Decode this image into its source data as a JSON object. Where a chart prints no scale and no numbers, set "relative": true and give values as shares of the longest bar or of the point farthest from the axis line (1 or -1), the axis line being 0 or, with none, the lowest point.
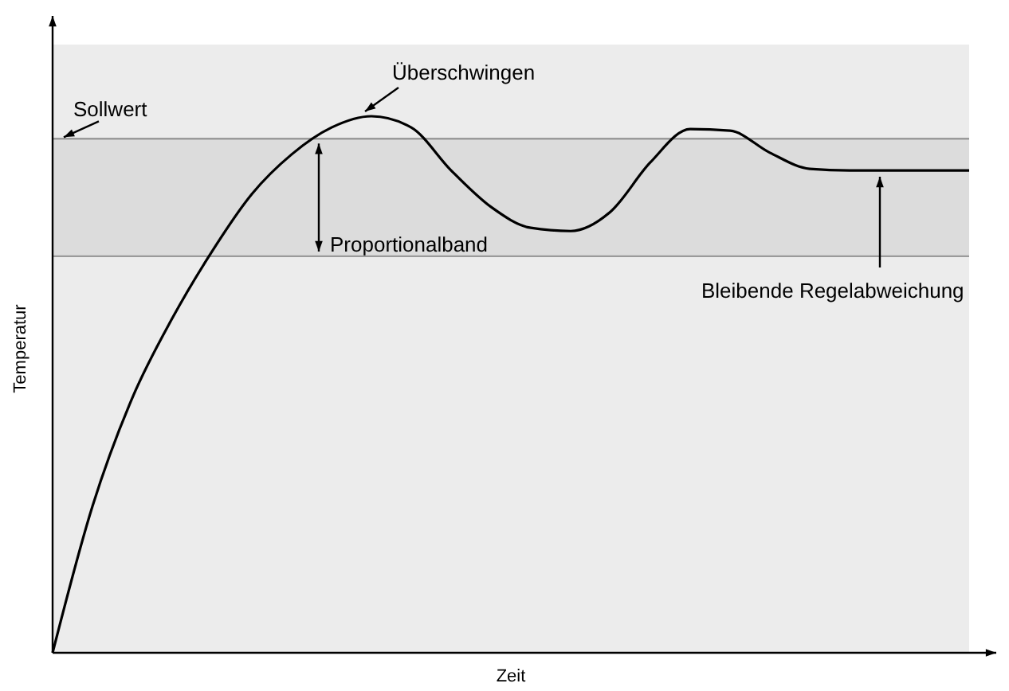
{
  "chart_data": {
    "type": "line",
    "relative": true,
    "xlabel": "Zeit",
    "ylabel": "Temperatur",
    "categories": [
      null,
      null,
      null,
      null,
      null,
      null,
      null,
      null,
      null,
      null,
      null,
      null,
      null,
      null,
      null,
      null,
      null,
      null,
      null,
      null,
      null,
      null,
      null,
      null
    ],
    "series": [
      {
        "color": "#000000",
        "values": [
          0,
          0.273,
          0.475,
          0.623,
          0.748,
          0.855,
          0.929,
          0.979,
          1,
          0.979,
          0.899,
          0.831,
          0.792,
          0.786,
          0.822,
          0.914,
          0.976,
          0.973,
          0.932,
          0.902,
          0.899,
          0.899,
          0.899,
          0.899
        ]
      }
    ],
    "bands": [
      {
        "axis": "y",
        "from": 0.739,
        "to": 0.958,
        "label": "Proportionalband",
        "color": "#dcdcdc"
      }
    ],
    "ref_lines": [
      {
        "axis": "y",
        "value": 0.958,
        "label": "Sollwert",
        "color": "#9a9a9a"
      },
      {
        "axis": "y",
        "value": 0.739,
        "label": null,
        "color": "#9a9a9a"
      }
    ],
    "annotations": [
      "Überschwingen",
      "Bleibende Regelabweichung"
    ]
  }
}
